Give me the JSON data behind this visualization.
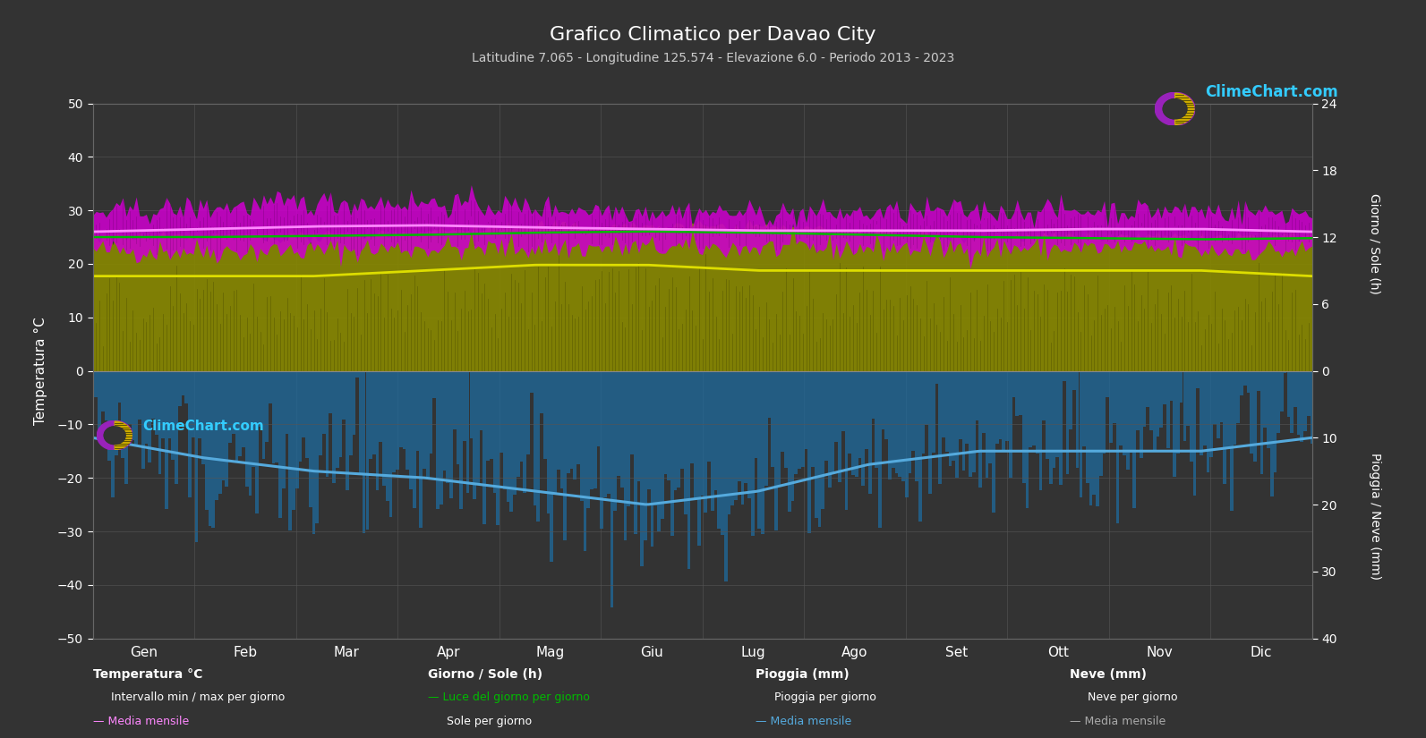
{
  "title": "Grafico Climatico per Davao City",
  "subtitle": "Latitudine 7.065 - Longitudine 125.574 - Elevazione 6.0 - Periodo 2013 - 2023",
  "bg_color": "#333333",
  "plot_bg_color": "#333333",
  "grid_color": "#555555",
  "text_color": "#ffffff",
  "months": [
    "Gen",
    "Feb",
    "Mar",
    "Apr",
    "Mag",
    "Giu",
    "Lug",
    "Ago",
    "Set",
    "Ott",
    "Nov",
    "Dic"
  ],
  "temp_min_monthly": [
    22.5,
    22.5,
    22.5,
    23.0,
    23.0,
    23.0,
    23.0,
    23.0,
    23.0,
    23.0,
    22.5,
    22.5
  ],
  "temp_max_monthly": [
    29.5,
    30.5,
    31.5,
    31.5,
    30.5,
    30.0,
    29.5,
    29.5,
    30.0,
    30.0,
    30.0,
    29.5
  ],
  "temp_mean_monthly": [
    26.0,
    26.5,
    27.0,
    27.2,
    26.8,
    26.5,
    26.2,
    26.2,
    26.2,
    26.5,
    26.5,
    26.0
  ],
  "sun_hours_monthly": [
    8.5,
    8.5,
    8.5,
    9.0,
    9.5,
    9.5,
    9.0,
    9.0,
    9.0,
    9.0,
    9.0,
    8.5
  ],
  "sun_max_monthly": [
    12.0,
    12.0,
    12.0,
    12.5,
    13.0,
    13.0,
    13.0,
    12.5,
    12.0,
    12.0,
    12.0,
    12.0
  ],
  "daylight_monthly": [
    12.0,
    12.0,
    12.1,
    12.2,
    12.4,
    12.5,
    12.4,
    12.2,
    12.0,
    11.9,
    11.8,
    11.9
  ],
  "rain_mean_monthly": [
    10.0,
    13.0,
    15.0,
    16.0,
    18.0,
    20.0,
    18.0,
    14.0,
    12.0,
    12.0,
    12.0,
    10.0
  ],
  "temp_noise_std": 1.2,
  "sun_noise_std": 0.8,
  "rain_noise_std": 5.0,
  "temp_ylim_min": -50,
  "temp_ylim_max": 50,
  "sun_axis_max": 24,
  "rain_axis_max": 40,
  "colors": {
    "temp_band_fill": "#cc00cc",
    "temp_band_line": "#440044",
    "temp_mean_line": "#ff88ff",
    "sun_band_fill": "#888800",
    "sun_mean_line": "#dddd00",
    "daylight_line": "#00bb00",
    "rain_bar": "#1e6b9e",
    "rain_mean_line": "#55aadd",
    "snow_bar": "#888888",
    "snow_mean_line": "#aaaaaa"
  }
}
